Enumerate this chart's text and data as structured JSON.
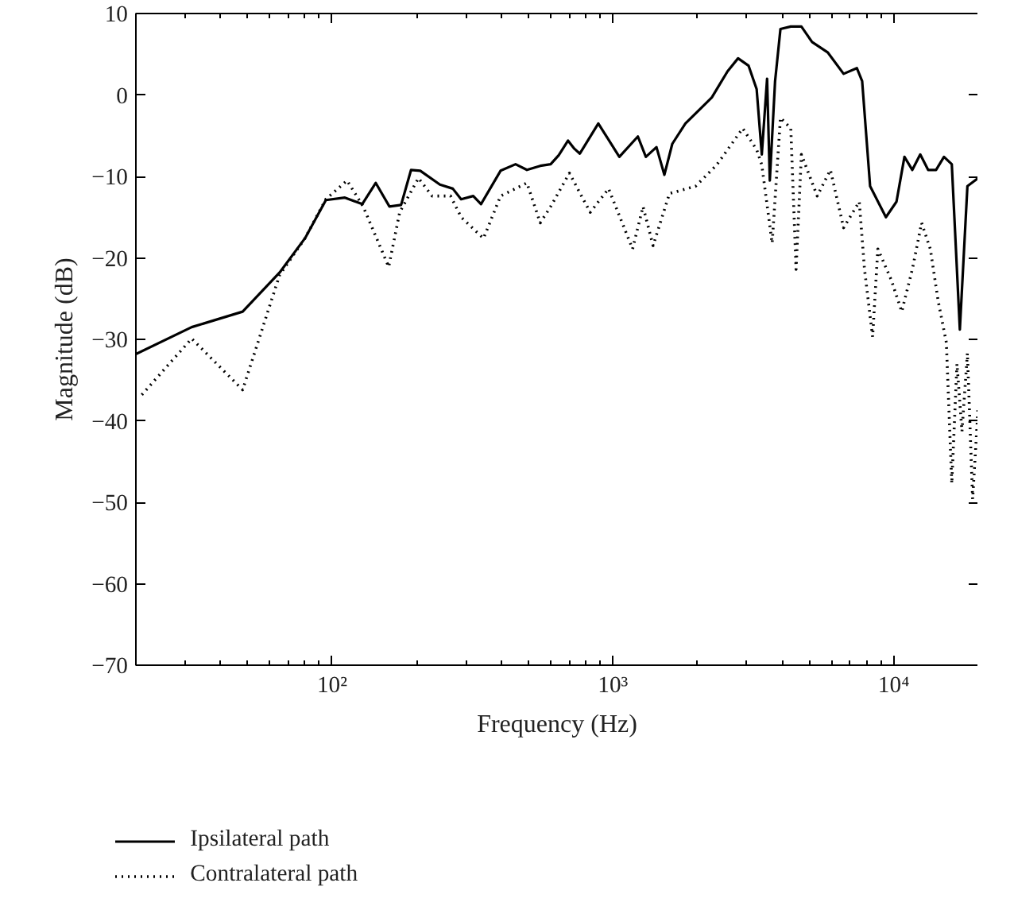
{
  "chart_data": {
    "type": "line",
    "xlabel": "Frequency (Hz)",
    "ylabel": "Magnitude (dB)",
    "log": "x",
    "grid": false,
    "legend": "bottom",
    "marker": "none",
    "xlim": [
      20,
      20000
    ],
    "ylim": [
      -70,
      10
    ],
    "xticks": [
      {
        "value": 100,
        "label": "10²"
      },
      {
        "value": 1000,
        "label": "10³"
      },
      {
        "value": 10000,
        "label": "10⁴"
      }
    ],
    "yticks": [
      {
        "value": -70,
        "label": "−70"
      },
      {
        "value": -60,
        "label": "−60"
      },
      {
        "value": -50,
        "label": "−50"
      },
      {
        "value": -40,
        "label": "−40"
      },
      {
        "value": -30,
        "label": "−30"
      },
      {
        "value": -20,
        "label": "−20"
      },
      {
        "value": -10,
        "label": "−10"
      },
      0,
      10
    ],
    "series": [
      {
        "name": "Ipsilateral path",
        "color": "#000000",
        "line_style": "solid",
        "x": [
          20,
          31.6,
          48,
          65,
          80,
          95,
          111,
          128,
          143,
          160,
          176,
          191,
          206,
          242,
          269,
          288,
          318,
          339,
          398,
          450,
          494,
          551,
          600,
          641,
          692,
          729,
          762,
          887,
          1054,
          1227,
          1310,
          1429,
          1525,
          1627,
          1812,
          2062,
          2250,
          2400,
          2560,
          2790,
          3040,
          3250,
          3390,
          3540,
          3620,
          3780,
          3950,
          4300,
          4690,
          5120,
          5830,
          6630,
          7390,
          7720,
          8240,
          9380,
          10230,
          10920,
          11650,
          12430,
          13260,
          14150,
          15100,
          16100,
          17200,
          18300,
          20000
        ],
        "values": [
          -31.8,
          -28.5,
          -26.6,
          -21.8,
          -17.6,
          -12.9,
          -12.6,
          -13.4,
          -10.8,
          -13.7,
          -13.5,
          -9.2,
          -9.3,
          -11,
          -11.5,
          -12.8,
          -12.4,
          -13.4,
          -9.3,
          -8.5,
          -9.2,
          -8.7,
          -8.5,
          -7.4,
          -5.6,
          -6.6,
          -7.2,
          -3.5,
          -7.6,
          -5.1,
          -7.6,
          -6.4,
          -9.8,
          -6,
          -3.5,
          -1.6,
          -0.3,
          1.3,
          2.9,
          4.5,
          3.6,
          0.7,
          -7.3,
          2,
          -10.5,
          1.7,
          8.1,
          8.4,
          8.4,
          6.5,
          5.2,
          2.6,
          3.3,
          1.7,
          -11.2,
          -15,
          -13.1,
          -7.6,
          -9.2,
          -7.3,
          -9.2,
          -9.2,
          -7.6,
          -8.5,
          -28.8,
          -11.2,
          -10.2
        ]
      },
      {
        "name": "Contralateral path",
        "color": "#000000",
        "line_style": "dotted",
        "x": [
          21,
          31.6,
          48,
          65,
          80,
          95,
          113,
          129,
          159,
          174,
          203,
          227,
          264,
          288,
          346,
          398,
          494,
          551,
          600,
          700,
          762,
          830,
          965,
          1175,
          1280,
          1390,
          1590,
          1970,
          2340,
          2900,
          3250,
          3390,
          3690,
          3950,
          4300,
          4490,
          4690,
          5340,
          5950,
          6630,
          7540,
          7870,
          8410,
          8780,
          9800,
          10680,
          11650,
          12570,
          13500,
          14400,
          15400,
          16100,
          16800,
          17500,
          18300,
          19100,
          20000
        ],
        "values": [
          -36.8,
          -29.9,
          -36.2,
          -22.1,
          -17.6,
          -12.8,
          -10.5,
          -13.7,
          -21.1,
          -14.4,
          -10.2,
          -12.4,
          -12.4,
          -15,
          -17.6,
          -12.4,
          -10.8,
          -15.7,
          -13.7,
          -9.6,
          -12,
          -14.4,
          -11.5,
          -18.9,
          -13.7,
          -18.5,
          -12.1,
          -11.2,
          -8.6,
          -4.1,
          -6.7,
          -8.6,
          -18.2,
          -2.8,
          -4.1,
          -21.4,
          -7.3,
          -12.4,
          -9.2,
          -16.3,
          -13.1,
          -21.4,
          -29.7,
          -18.9,
          -22.7,
          -26.6,
          -21.4,
          -15.7,
          -18.9,
          -25.3,
          -30.4,
          -47.7,
          -33,
          -41.3,
          -31.7,
          -49.6,
          -38.1
        ]
      }
    ]
  }
}
